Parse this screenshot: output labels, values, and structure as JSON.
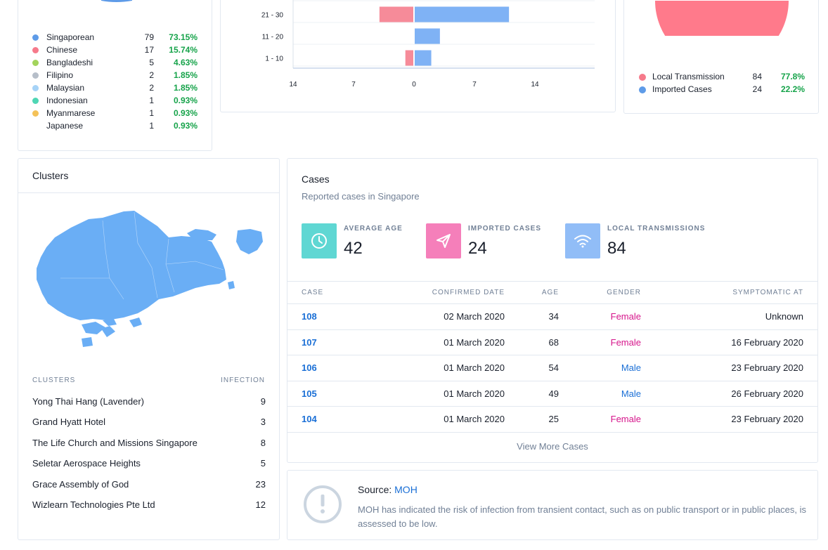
{
  "nationality": {
    "rows": [
      {
        "name": "Singaporean",
        "count": "79",
        "pct": "73.15%",
        "color": "#5e9be8"
      },
      {
        "name": "Chinese",
        "count": "17",
        "pct": "15.74%",
        "color": "#f67a8b"
      },
      {
        "name": "Bangladeshi",
        "count": "5",
        "pct": "4.63%",
        "color": "#a3d45c"
      },
      {
        "name": "Filipino",
        "count": "2",
        "pct": "1.85%",
        "color": "#b6bec9"
      },
      {
        "name": "Malaysian",
        "count": "2",
        "pct": "1.85%",
        "color": "#a6d3f7"
      },
      {
        "name": "Indonesian",
        "count": "1",
        "pct": "0.93%",
        "color": "#4fd6b4"
      },
      {
        "name": "Myanmarese",
        "count": "1",
        "pct": "0.93%",
        "color": "#f4c259"
      },
      {
        "name": "Japanese",
        "count": "1",
        "pct": "0.93%",
        "color": ""
      }
    ]
  },
  "chart_data": {
    "type": "bar",
    "orientation": "horizontal",
    "categories": [
      "21 - 30",
      "11 - 20",
      "1 - 10"
    ],
    "series": [
      {
        "values": [
          -4,
          0,
          -1
        ],
        "color": "#f68b99"
      },
      {
        "values": [
          11,
          3,
          2
        ],
        "color": "#7fb2f5"
      }
    ],
    "x_ticks": [
      "14",
      "7",
      "0",
      "7",
      "14"
    ],
    "xlim": [
      -14,
      14
    ]
  },
  "transmission": {
    "rows": [
      {
        "name": "Local Transmission",
        "count": "84",
        "pct": "77.8%",
        "color": "#f67a8b"
      },
      {
        "name": "Imported Cases",
        "count": "24",
        "pct": "22.2%",
        "color": "#5e9be8"
      }
    ],
    "pie_color": "#ff7a8b"
  },
  "clusters": {
    "title": "Clusters",
    "col_name": "CLUSTERS",
    "col_value": "INFECTION",
    "map_color": "#6aaef5",
    "rows": [
      {
        "name": "Yong Thai Hang (Lavender)",
        "value": "9"
      },
      {
        "name": "Grand Hyatt Hotel",
        "value": "3"
      },
      {
        "name": "The Life Church and Missions Singapore",
        "value": "8"
      },
      {
        "name": "Seletar Aerospace Heights",
        "value": "5"
      },
      {
        "name": "Grace Assembly of God",
        "value": "23"
      },
      {
        "name": "Wizlearn Technologies Pte Ltd",
        "value": "12"
      }
    ]
  },
  "cases": {
    "title": "Cases",
    "subtitle": "Reported cases in Singapore",
    "stats": [
      {
        "label": "AVERAGE AGE",
        "value": "42",
        "color": "#5fd7d3",
        "icon": "clock-icon"
      },
      {
        "label": "IMPORTED CASES",
        "value": "24",
        "color": "#f57fba",
        "icon": "send-icon"
      },
      {
        "label": "LOCAL TRANSMISSIONS",
        "value": "84",
        "color": "#91bdf7",
        "icon": "wifi-icon"
      }
    ],
    "headers": {
      "case": "CASE",
      "date": "CONFIRMED DATE",
      "age": "AGE",
      "gender": "GENDER",
      "symptomatic": "SYMPTOMATIC AT"
    },
    "rows": [
      {
        "case": "108",
        "date": "02 March 2020",
        "age": "34",
        "gender": "Female",
        "symptomatic": "Unknown"
      },
      {
        "case": "107",
        "date": "01 March 2020",
        "age": "68",
        "gender": "Female",
        "symptomatic": "16 February 2020"
      },
      {
        "case": "106",
        "date": "01 March 2020",
        "age": "54",
        "gender": "Male",
        "symptomatic": "23 February 2020"
      },
      {
        "case": "105",
        "date": "01 March 2020",
        "age": "49",
        "gender": "Male",
        "symptomatic": "26 February 2020"
      },
      {
        "case": "104",
        "date": "01 March 2020",
        "age": "25",
        "gender": "Female",
        "symptomatic": "23 February 2020"
      }
    ],
    "view_more": "View More Cases"
  },
  "source": {
    "label": "Source:",
    "link": "MOH",
    "text": "MOH has indicated the risk of infection from transient contact, such as on public transport or in public places, is assessed to be low."
  }
}
